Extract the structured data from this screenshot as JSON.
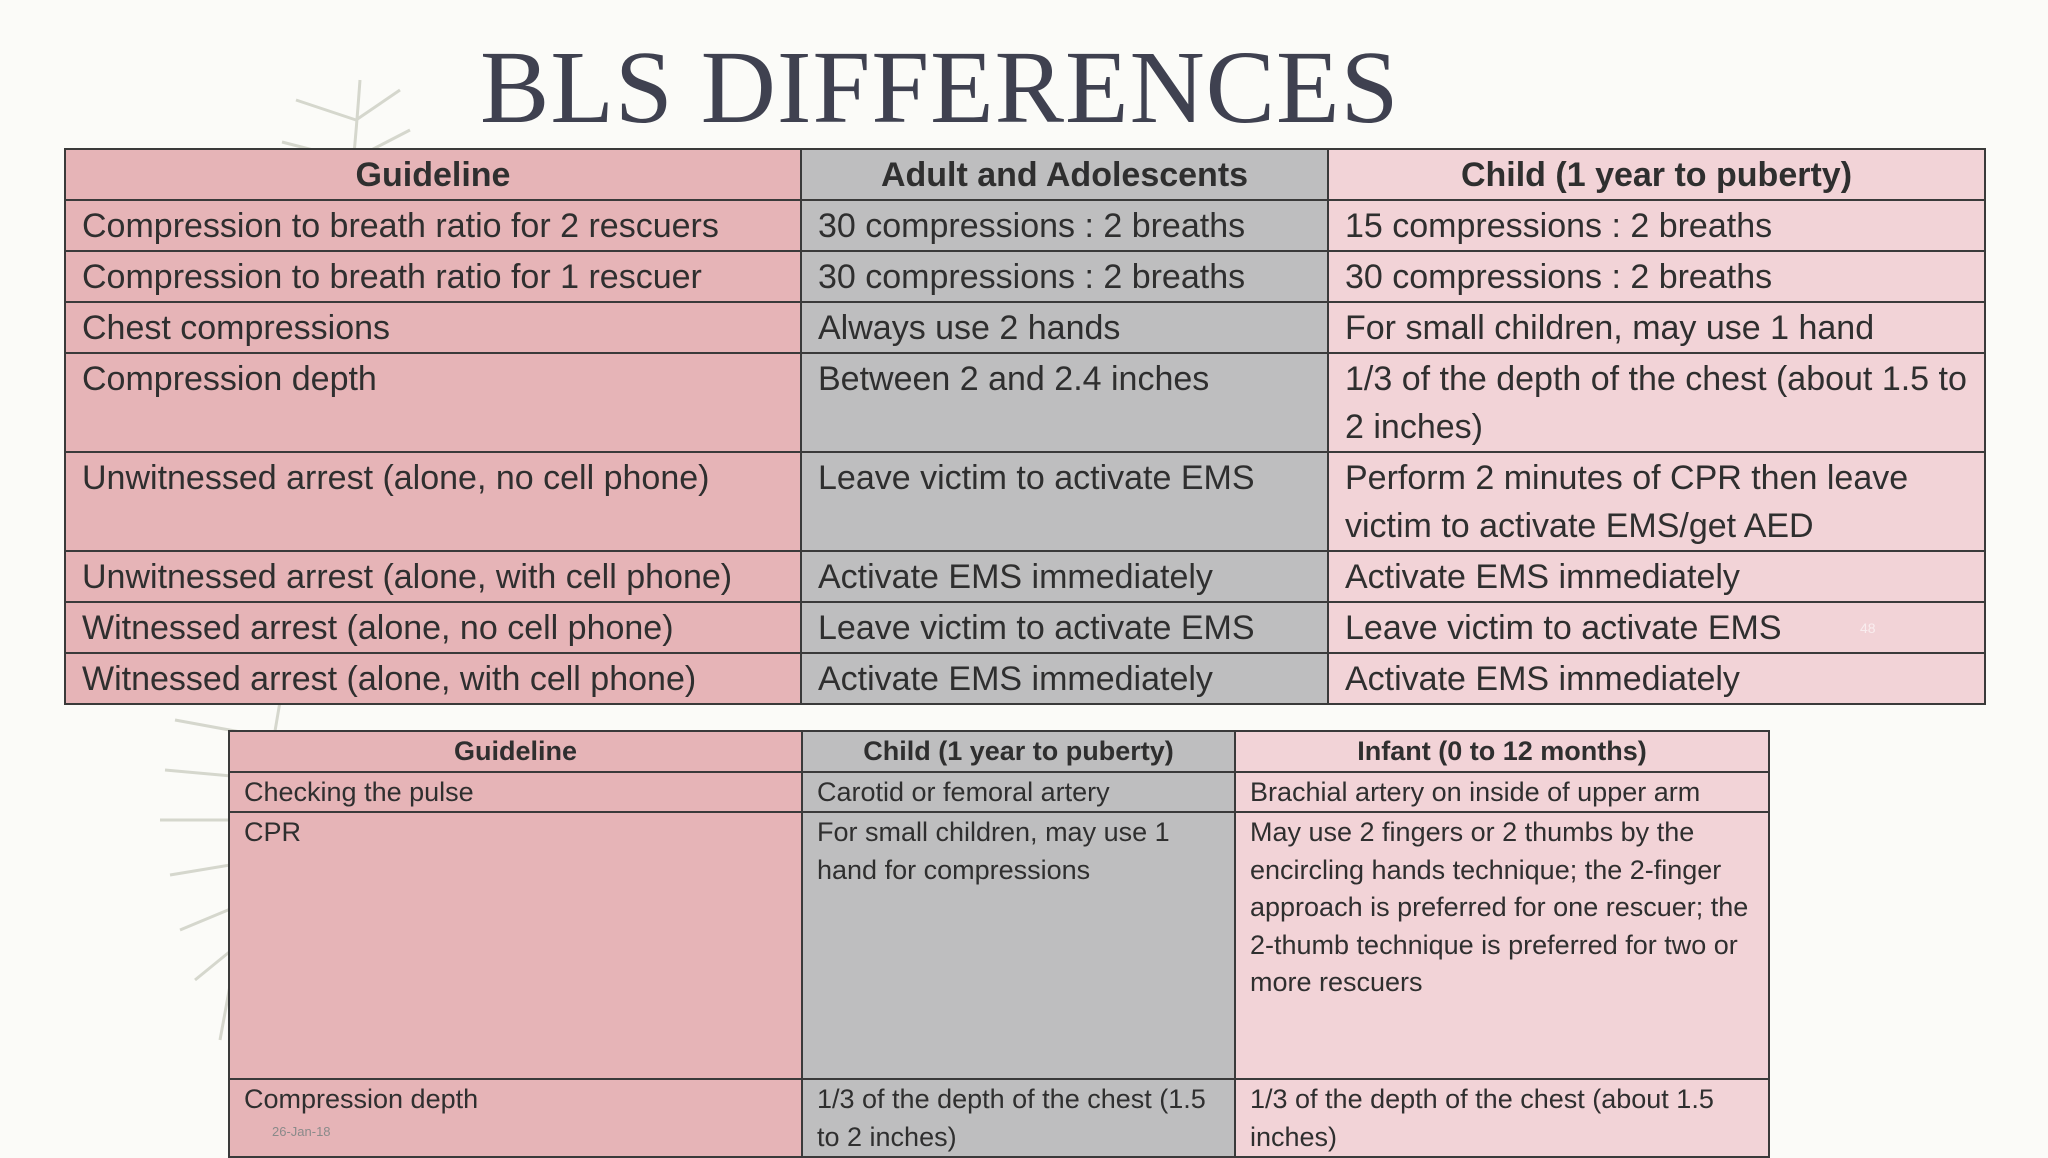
{
  "slide": {
    "title": "BLS DIFFERENCES",
    "date": "26-Jan-18",
    "page_number": "48"
  },
  "table1": {
    "headers": [
      "Guideline",
      "Adult and Adolescents",
      "Child (1 year to puberty)"
    ],
    "rows": [
      [
        "Compression to breath ratio for 2 rescuers",
        "30 compressions : 2 breaths",
        "15 compressions : 2 breaths"
      ],
      [
        "Compression to breath ratio for 1 rescuer",
        "30 compressions : 2 breaths",
        "30 compressions : 2 breaths"
      ],
      [
        "Chest compressions",
        "Always use 2 hands",
        "For small children, may use 1 hand"
      ],
      [
        "Compression depth",
        "Between 2 and 2.4 inches",
        "1/3 of the depth of the chest (about 1.5 to 2 inches)"
      ],
      [
        "Unwitnessed arrest (alone, no cell phone)",
        "Leave victim to activate EMS",
        "Perform 2 minutes of CPR then leave victim to activate EMS/get AED"
      ],
      [
        "Unwitnessed arrest (alone, with cell phone)",
        "Activate EMS immediately",
        "Activate EMS immediately"
      ],
      [
        "Witnessed arrest (alone, no cell phone)",
        "Leave victim to activate EMS",
        "Leave victim to activate EMS"
      ],
      [
        "Witnessed arrest (alone, with cell phone)",
        "Activate EMS immediately",
        "Activate EMS immediately"
      ]
    ]
  },
  "table2": {
    "headers": [
      "Guideline",
      "Child (1 year to puberty)",
      "Infant (0 to 12 months)"
    ],
    "rows": [
      [
        "Checking the pulse",
        "Carotid or femoral artery",
        "Brachial artery on inside of upper arm"
      ],
      [
        "CPR",
        "For small children, may use 1 hand for compressions",
        "May use 2 fingers or 2 thumbs by the encircling hands technique; the 2-finger approach is preferred for one rescuer; the 2-thumb technique is preferred for two or more rescuers"
      ],
      [
        "Compression depth",
        "1/3 of the depth of the chest (1.5 to 2 inches)",
        "1/3 of the depth of the chest (about 1.5 inches)"
      ]
    ]
  },
  "colors": {
    "guideline_column": "#e6b4b7",
    "middle_column": "#bebebf",
    "right_column": "#f2d3d7",
    "title": "#3f4150"
  }
}
